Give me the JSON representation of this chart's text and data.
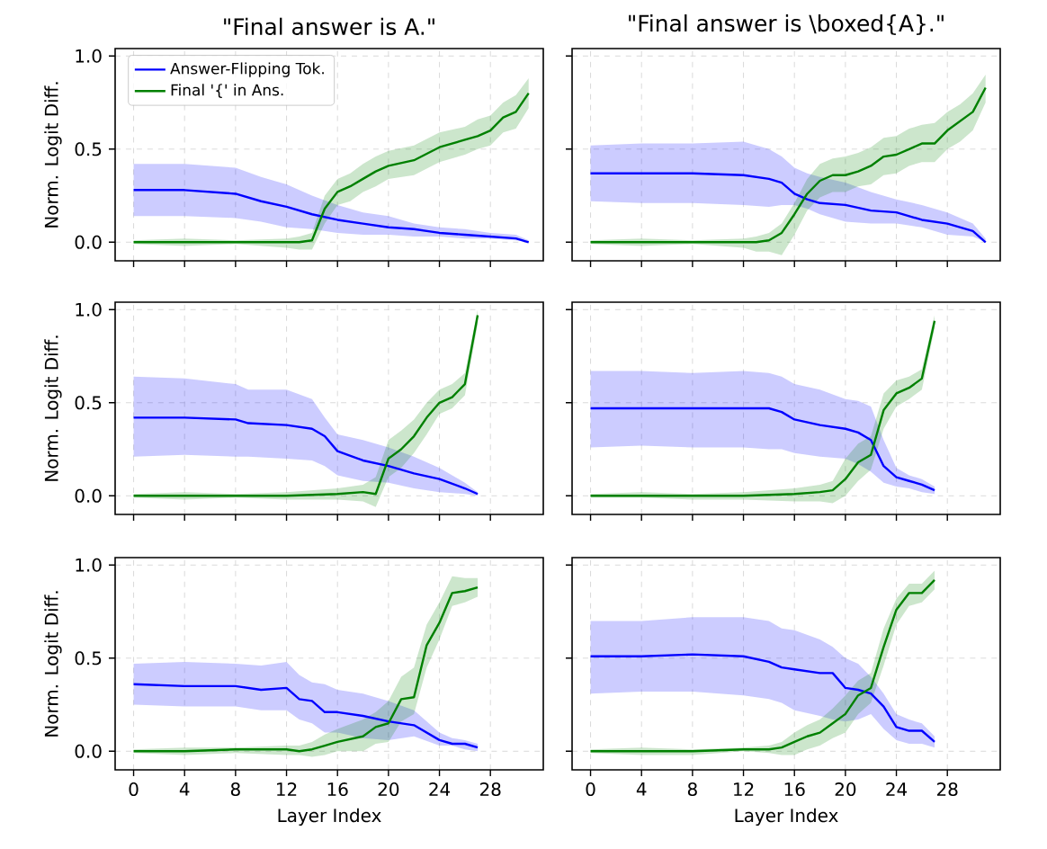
{
  "chart_data": [
    {
      "type": "line",
      "title": "\"Final answer is A.\"",
      "ylabel": "Norm. Logit Diff.",
      "xlim": [
        -1.45,
        32.15
      ],
      "ylim": [
        -0.1,
        1.04
      ],
      "xticks": [
        0,
        4,
        8,
        12,
        16,
        20,
        24,
        28
      ],
      "yticks": [
        {
          "value": 0,
          "label": "0.0"
        },
        {
          "value": 0.5,
          "label": "0.5"
        },
        {
          "value": 1,
          "label": "1.0"
        }
      ],
      "grid": true,
      "tick_labels": "y",
      "legend": "top left",
      "series": [
        {
          "name": "Answer-Flipping Tok.",
          "color": "#0000ff",
          "x": [
            0,
            4,
            8,
            10,
            12,
            14,
            16,
            18,
            20,
            22,
            24,
            26,
            28,
            30,
            31
          ],
          "values": [
            0.28,
            0.28,
            0.26,
            0.22,
            0.19,
            0.15,
            0.12,
            0.1,
            0.08,
            0.07,
            0.05,
            0.04,
            0.03,
            0.02,
            0.0
          ],
          "upper": [
            0.42,
            0.42,
            0.4,
            0.35,
            0.31,
            0.25,
            0.2,
            0.16,
            0.14,
            0.1,
            0.08,
            0.07,
            0.05,
            0.04,
            0.01
          ],
          "lower": [
            0.14,
            0.14,
            0.13,
            0.11,
            0.08,
            0.07,
            0.05,
            0.04,
            0.04,
            0.03,
            0.03,
            0.02,
            0.02,
            0.01,
            0.0
          ]
        },
        {
          "name": "Final '{' in Ans.",
          "color": "#008000",
          "x": [
            0,
            4,
            8,
            12,
            13,
            14,
            15,
            16,
            17,
            18,
            19,
            20,
            22,
            24,
            26,
            27,
            28,
            29,
            30,
            31
          ],
          "values": [
            0.0,
            0.0,
            0.0,
            0.0,
            0.0,
            0.01,
            0.18,
            0.27,
            0.3,
            0.34,
            0.38,
            0.41,
            0.44,
            0.51,
            0.55,
            0.57,
            0.6,
            0.67,
            0.7,
            0.8
          ],
          "upper": [
            0.01,
            0.02,
            0.01,
            0.02,
            0.03,
            0.05,
            0.25,
            0.34,
            0.37,
            0.42,
            0.46,
            0.49,
            0.52,
            0.59,
            0.62,
            0.66,
            0.68,
            0.75,
            0.79,
            0.88
          ],
          "lower": [
            -0.01,
            -0.02,
            -0.01,
            -0.03,
            -0.04,
            -0.04,
            0.1,
            0.2,
            0.22,
            0.27,
            0.3,
            0.34,
            0.36,
            0.43,
            0.47,
            0.5,
            0.52,
            0.59,
            0.61,
            0.72
          ]
        }
      ]
    },
    {
      "type": "line",
      "title": "\"Final answer is \\boxed{A}.\"",
      "xlim": [
        -1.45,
        32.15
      ],
      "ylim": [
        -0.1,
        1.04
      ],
      "xticks": [
        0,
        4,
        8,
        12,
        16,
        20,
        24,
        28
      ],
      "yticks": [
        {
          "value": 0,
          "label": null
        },
        {
          "value": 0.5,
          "label": null
        },
        {
          "value": 1,
          "label": null
        }
      ],
      "grid": true,
      "tick_labels": false,
      "series": [
        {
          "color": "#0000ff",
          "x": [
            0,
            4,
            8,
            12,
            14,
            15,
            16,
            17,
            18,
            20,
            22,
            24,
            26,
            28,
            30,
            31
          ],
          "values": [
            0.37,
            0.37,
            0.37,
            0.36,
            0.34,
            0.32,
            0.26,
            0.23,
            0.21,
            0.2,
            0.17,
            0.16,
            0.12,
            0.1,
            0.06,
            0.0
          ],
          "upper": [
            0.52,
            0.53,
            0.53,
            0.54,
            0.5,
            0.46,
            0.4,
            0.37,
            0.35,
            0.32,
            0.27,
            0.23,
            0.2,
            0.16,
            0.1,
            0.02
          ],
          "lower": [
            0.22,
            0.21,
            0.21,
            0.2,
            0.19,
            0.2,
            0.2,
            0.18,
            0.15,
            0.11,
            0.1,
            0.1,
            0.08,
            0.04,
            0.03,
            0.0
          ]
        },
        {
          "color": "#008000",
          "x": [
            0,
            4,
            8,
            12,
            13,
            14,
            15,
            16,
            17,
            18,
            19,
            20,
            21,
            22,
            23,
            24,
            25,
            26,
            27,
            28,
            29,
            30,
            31
          ],
          "values": [
            0.0,
            0.0,
            0.0,
            0.0,
            0.0,
            0.01,
            0.05,
            0.15,
            0.26,
            0.33,
            0.36,
            0.36,
            0.38,
            0.41,
            0.46,
            0.47,
            0.5,
            0.53,
            0.53,
            0.6,
            0.65,
            0.7,
            0.83
          ],
          "upper": [
            0.01,
            0.02,
            0.01,
            0.02,
            0.03,
            0.05,
            0.1,
            0.21,
            0.34,
            0.42,
            0.45,
            0.46,
            0.48,
            0.51,
            0.56,
            0.57,
            0.61,
            0.63,
            0.64,
            0.7,
            0.74,
            0.8,
            0.9
          ],
          "lower": [
            -0.01,
            -0.02,
            -0.01,
            -0.03,
            -0.05,
            -0.05,
            -0.07,
            0.04,
            0.17,
            0.24,
            0.27,
            0.27,
            0.3,
            0.31,
            0.36,
            0.37,
            0.41,
            0.43,
            0.43,
            0.5,
            0.54,
            0.6,
            0.75
          ]
        }
      ]
    },
    {
      "type": "line",
      "ylabel": "Norm. Logit Diff.",
      "xlim": [
        -1.45,
        32.15
      ],
      "ylim": [
        -0.1,
        1.04
      ],
      "xticks": [
        0,
        4,
        8,
        12,
        16,
        20,
        24,
        28
      ],
      "yticks": [
        {
          "value": 0,
          "label": "0.0"
        },
        {
          "value": 0.5,
          "label": "0.5"
        },
        {
          "value": 1,
          "label": "1.0"
        }
      ],
      "grid": true,
      "tick_labels": "y",
      "series": [
        {
          "color": "#0000ff",
          "x": [
            0,
            4,
            8,
            9,
            12,
            14,
            15,
            16,
            18,
            20,
            22,
            24,
            26,
            27
          ],
          "values": [
            0.42,
            0.42,
            0.41,
            0.39,
            0.38,
            0.36,
            0.32,
            0.24,
            0.19,
            0.16,
            0.12,
            0.09,
            0.04,
            0.01
          ],
          "upper": [
            0.64,
            0.63,
            0.6,
            0.57,
            0.57,
            0.52,
            0.42,
            0.33,
            0.3,
            0.26,
            0.21,
            0.15,
            0.07,
            0.02
          ],
          "lower": [
            0.21,
            0.22,
            0.21,
            0.21,
            0.2,
            0.19,
            0.16,
            0.11,
            0.08,
            0.07,
            0.04,
            0.02,
            0.01,
            0.0
          ]
        },
        {
          "color": "#008000",
          "x": [
            0,
            4,
            8,
            12,
            16,
            18,
            19,
            20,
            21,
            22,
            23,
            24,
            25,
            26,
            27
          ],
          "values": [
            0.0,
            0.0,
            0.0,
            0.0,
            0.01,
            0.02,
            0.01,
            0.2,
            0.25,
            0.32,
            0.42,
            0.5,
            0.53,
            0.6,
            0.97
          ],
          "upper": [
            0.01,
            0.02,
            0.01,
            0.02,
            0.04,
            0.06,
            0.1,
            0.3,
            0.35,
            0.41,
            0.5,
            0.57,
            0.6,
            0.66,
            1.0
          ],
          "lower": [
            -0.01,
            -0.02,
            -0.01,
            -0.02,
            -0.02,
            -0.03,
            -0.06,
            0.1,
            0.15,
            0.23,
            0.33,
            0.44,
            0.47,
            0.54,
            0.92
          ]
        }
      ]
    },
    {
      "type": "line",
      "xlim": [
        -1.45,
        32.15
      ],
      "ylim": [
        -0.1,
        1.04
      ],
      "xticks": [
        0,
        4,
        8,
        12,
        16,
        20,
        24,
        28
      ],
      "yticks": [
        {
          "value": 0,
          "label": null
        },
        {
          "value": 0.5,
          "label": null
        },
        {
          "value": 1,
          "label": null
        }
      ],
      "grid": true,
      "tick_labels": false,
      "series": [
        {
          "color": "#0000ff",
          "x": [
            0,
            4,
            8,
            12,
            14,
            15,
            16,
            18,
            20,
            21,
            22,
            23,
            24,
            25,
            26,
            27
          ],
          "values": [
            0.47,
            0.47,
            0.47,
            0.47,
            0.47,
            0.45,
            0.41,
            0.38,
            0.36,
            0.34,
            0.3,
            0.16,
            0.1,
            0.08,
            0.06,
            0.03
          ],
          "upper": [
            0.67,
            0.67,
            0.66,
            0.67,
            0.66,
            0.64,
            0.6,
            0.57,
            0.52,
            0.51,
            0.48,
            0.3,
            0.15,
            0.11,
            0.09,
            0.05
          ],
          "lower": [
            0.26,
            0.27,
            0.26,
            0.26,
            0.25,
            0.25,
            0.23,
            0.21,
            0.2,
            0.17,
            0.13,
            0.07,
            0.05,
            0.04,
            0.02,
            0.01
          ]
        },
        {
          "color": "#008000",
          "x": [
            0,
            4,
            8,
            12,
            16,
            18,
            19,
            20,
            21,
            22,
            23,
            24,
            25,
            26,
            27
          ],
          "values": [
            0.0,
            0.0,
            0.0,
            0.0,
            0.01,
            0.02,
            0.03,
            0.09,
            0.18,
            0.22,
            0.46,
            0.55,
            0.58,
            0.63,
            0.94
          ],
          "upper": [
            0.01,
            0.02,
            0.01,
            0.02,
            0.04,
            0.06,
            0.08,
            0.2,
            0.28,
            0.32,
            0.55,
            0.62,
            0.64,
            0.68,
            0.97
          ],
          "lower": [
            -0.01,
            -0.01,
            -0.02,
            -0.02,
            -0.03,
            -0.03,
            -0.04,
            0.0,
            0.08,
            0.14,
            0.36,
            0.48,
            0.52,
            0.57,
            0.9
          ]
        }
      ]
    },
    {
      "type": "line",
      "xlabel": "Layer Index",
      "ylabel": "Norm. Logit Diff.",
      "xlim": [
        -1.45,
        32.15
      ],
      "ylim": [
        -0.1,
        1.04
      ],
      "xticks": [
        0,
        4,
        8,
        12,
        16,
        20,
        24,
        28
      ],
      "yticks": [
        {
          "value": 0,
          "label": "0.0"
        },
        {
          "value": 0.5,
          "label": "0.5"
        },
        {
          "value": 1,
          "label": "1.0"
        }
      ],
      "grid": true,
      "series": [
        {
          "color": "#0000ff",
          "x": [
            0,
            4,
            8,
            10,
            12,
            13,
            14,
            15,
            16,
            18,
            20,
            22,
            24,
            25,
            26,
            27
          ],
          "values": [
            0.36,
            0.35,
            0.35,
            0.33,
            0.34,
            0.28,
            0.27,
            0.21,
            0.21,
            0.19,
            0.16,
            0.14,
            0.06,
            0.04,
            0.04,
            0.02
          ],
          "upper": [
            0.47,
            0.48,
            0.47,
            0.46,
            0.48,
            0.41,
            0.37,
            0.36,
            0.33,
            0.31,
            0.27,
            0.22,
            0.1,
            0.07,
            0.06,
            0.04
          ],
          "lower": [
            0.25,
            0.24,
            0.24,
            0.22,
            0.22,
            0.17,
            0.15,
            0.1,
            0.1,
            0.07,
            0.06,
            0.08,
            0.03,
            0.03,
            0.01,
            0.0
          ]
        },
        {
          "color": "#008000",
          "x": [
            0,
            4,
            8,
            12,
            13,
            14,
            15,
            16,
            18,
            19,
            20,
            21,
            22,
            23,
            24,
            25,
            26,
            27
          ],
          "values": [
            0.0,
            0.0,
            0.01,
            0.01,
            0.0,
            0.01,
            0.03,
            0.05,
            0.08,
            0.13,
            0.15,
            0.28,
            0.29,
            0.57,
            0.69,
            0.85,
            0.86,
            0.88
          ],
          "upper": [
            0.01,
            0.02,
            0.02,
            0.03,
            0.03,
            0.05,
            0.09,
            0.12,
            0.17,
            0.21,
            0.27,
            0.4,
            0.45,
            0.68,
            0.8,
            0.94,
            0.93,
            0.93
          ],
          "lower": [
            -0.01,
            -0.02,
            -0.01,
            -0.02,
            -0.02,
            -0.03,
            -0.02,
            0.0,
            0.0,
            0.04,
            0.05,
            0.16,
            0.2,
            0.45,
            0.6,
            0.78,
            0.8,
            0.83
          ]
        }
      ]
    },
    {
      "type": "line",
      "xlabel": "Layer Index",
      "xlim": [
        -1.45,
        32.15
      ],
      "ylim": [
        -0.1,
        1.04
      ],
      "xticks": [
        0,
        4,
        8,
        12,
        16,
        20,
        24,
        28
      ],
      "yticks": [
        {
          "value": 0,
          "label": null
        },
        {
          "value": 0.5,
          "label": null
        },
        {
          "value": 1,
          "label": null
        }
      ],
      "grid": true,
      "tick_labels": "x",
      "series": [
        {
          "color": "#0000ff",
          "x": [
            0,
            4,
            8,
            12,
            14,
            15,
            16,
            18,
            19,
            20,
            21,
            22,
            23,
            24,
            25,
            26,
            27
          ],
          "values": [
            0.51,
            0.51,
            0.52,
            0.51,
            0.48,
            0.45,
            0.44,
            0.42,
            0.42,
            0.34,
            0.33,
            0.31,
            0.24,
            0.13,
            0.11,
            0.11,
            0.05
          ],
          "upper": [
            0.7,
            0.7,
            0.72,
            0.72,
            0.7,
            0.66,
            0.65,
            0.6,
            0.56,
            0.5,
            0.47,
            0.4,
            0.31,
            0.2,
            0.17,
            0.15,
            0.08
          ],
          "lower": [
            0.31,
            0.32,
            0.32,
            0.3,
            0.28,
            0.26,
            0.22,
            0.19,
            0.17,
            0.16,
            0.17,
            0.2,
            0.12,
            0.06,
            0.04,
            0.04,
            0.02
          ]
        },
        {
          "color": "#008000",
          "x": [
            0,
            4,
            8,
            12,
            14,
            15,
            16,
            17,
            18,
            19,
            20,
            21,
            22,
            23,
            24,
            25,
            26,
            27
          ],
          "values": [
            0.0,
            0.0,
            0.0,
            0.01,
            0.01,
            0.02,
            0.05,
            0.08,
            0.1,
            0.15,
            0.2,
            0.3,
            0.34,
            0.56,
            0.76,
            0.85,
            0.85,
            0.92
          ],
          "upper": [
            0.01,
            0.02,
            0.01,
            0.02,
            0.03,
            0.05,
            0.1,
            0.14,
            0.17,
            0.23,
            0.3,
            0.38,
            0.42,
            0.66,
            0.82,
            0.9,
            0.9,
            0.97
          ],
          "lower": [
            -0.01,
            -0.02,
            -0.02,
            0.0,
            -0.01,
            -0.02,
            -0.02,
            0.01,
            0.03,
            0.07,
            0.1,
            0.2,
            0.26,
            0.46,
            0.68,
            0.78,
            0.8,
            0.87
          ]
        }
      ]
    }
  ]
}
